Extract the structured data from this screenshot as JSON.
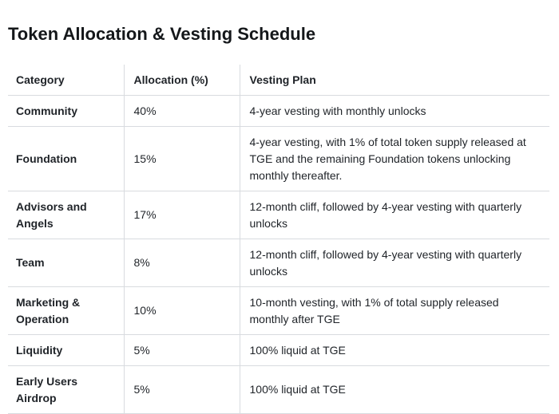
{
  "page": {
    "title": "Token Allocation & Vesting Schedule"
  },
  "table": {
    "columns": [
      "Category",
      "Allocation (%)",
      "Vesting Plan"
    ],
    "rows": [
      {
        "category": "Community",
        "allocation": "40%",
        "vesting": "4-year vesting with monthly unlocks"
      },
      {
        "category": "Foundation",
        "allocation": "15%",
        "vesting": "4-year vesting, with 1% of total token supply released at TGE and the remaining Foundation tokens unlocking monthly thereafter."
      },
      {
        "category": "Advisors and Angels",
        "allocation": "17%",
        "vesting": "12-month cliff, followed by 4-year vesting with quarterly unlocks"
      },
      {
        "category": "Team",
        "allocation": "8%",
        "vesting": "12-month cliff, followed by 4-year vesting with quarterly unlocks"
      },
      {
        "category": "Marketing & Operation",
        "allocation": "10%",
        "vesting": "10-month vesting, with 1% of total supply released monthly after TGE"
      },
      {
        "category": "Liquidity",
        "allocation": "5%",
        "vesting": "100% liquid at TGE"
      },
      {
        "category": "Early Users Airdrop",
        "allocation": "5%",
        "vesting": "100% liquid at TGE"
      }
    ]
  },
  "colors": {
    "title": "#14171a",
    "text": "#1f2328",
    "border": "#d8dbdf",
    "background": "#ffffff"
  }
}
